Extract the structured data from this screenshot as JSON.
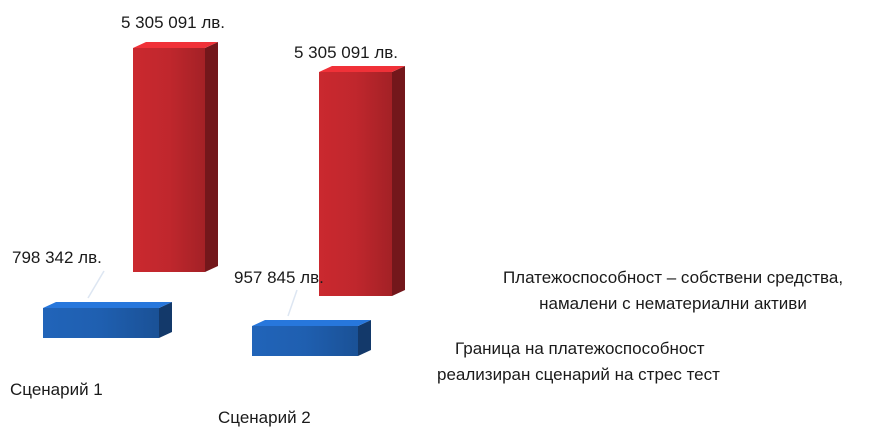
{
  "chart_data": {
    "type": "bar",
    "categories": [
      "Сценарий 1",
      "Сценарий 2"
    ],
    "series": [
      {
        "name": "Платежоспособност – собствени средства, намалени с нематериални активи",
        "values": [
          5305091,
          5305091
        ],
        "color": "#c0272d",
        "labels": [
          "5 305 091 лв.",
          "5 305 091 лв."
        ]
      },
      {
        "name": "Граница на платежоспособност реализиран сценарий на стрес тест",
        "values": [
          798342,
          957845
        ],
        "color": "#1f5fb0",
        "labels": [
          "798 342 лв.",
          "957 845 лв."
        ]
      }
    ],
    "legend": [
      {
        "lines": [
          "Платежоспособност – собствени средства,",
          "намалени с нематериални активи"
        ]
      },
      {
        "lines": [
          "Граница на платежоспособност",
          "реализиран сценарий на стрес тест"
        ]
      }
    ]
  }
}
